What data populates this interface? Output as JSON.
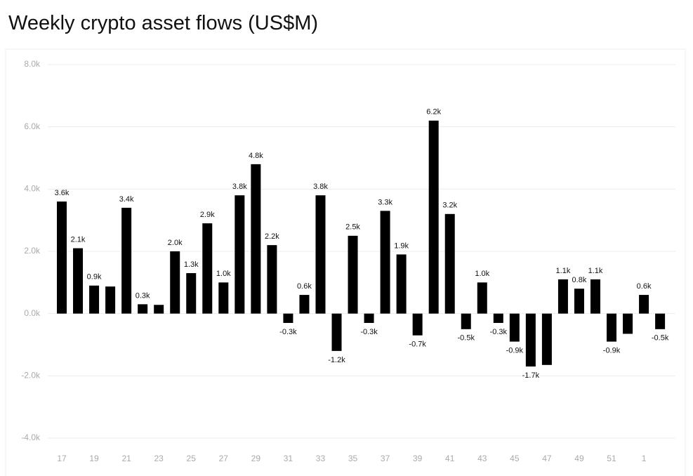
{
  "chart_data": {
    "type": "bar",
    "title": "Weekly crypto asset flows (US$M)",
    "categories": [
      "17",
      null,
      "19",
      null,
      "21",
      null,
      "23",
      null,
      "25",
      null,
      "27",
      null,
      "29",
      null,
      "31",
      null,
      "33",
      null,
      "35",
      null,
      "37",
      null,
      "39",
      null,
      "41",
      null,
      "43",
      null,
      "45",
      null,
      "47",
      null,
      "49",
      null,
      "51",
      null,
      "1",
      null
    ],
    "values": [
      3600,
      2100,
      900,
      870,
      3400,
      300,
      280,
      2000,
      1300,
      2900,
      1000,
      3800,
      4800,
      2200,
      -300,
      600,
      3800,
      -1200,
      2500,
      -300,
      3300,
      1900,
      -700,
      6200,
      3200,
      -500,
      1000,
      -300,
      -900,
      -1700,
      -1650,
      1100,
      800,
      1100,
      -900,
      -650,
      600,
      -500
    ],
    "value_labels": [
      "3.6k",
      "2.1k",
      "0.9k",
      null,
      "3.4k",
      "0.3k",
      null,
      "2.0k",
      "1.3k",
      "2.9k",
      "1.0k",
      "3.8k",
      "4.8k",
      "2.2k",
      "-0.3k",
      "0.6k",
      "3.8k",
      "-1.2k",
      "2.5k",
      "-0.3k",
      "3.3k",
      "1.9k",
      "-0.7k",
      "6.2k",
      "3.2k",
      "-0.5k",
      "1.0k",
      "-0.3k",
      "-0.9k",
      "-1.7k",
      null,
      "1.1k",
      "0.8k",
      "1.1k",
      "-0.9k",
      null,
      "0.6k",
      "-0.5k"
    ],
    "color": "#000000",
    "ylim": [
      -4000,
      8000
    ],
    "yticks": [
      {
        "value": -4000,
        "label": "-4.0k"
      },
      {
        "value": -2000,
        "label": "-2.0k"
      },
      {
        "value": 0,
        "label": "0.0k"
      },
      {
        "value": 2000,
        "label": "2.0k"
      },
      {
        "value": 4000,
        "label": "4.0k"
      },
      {
        "value": 6000,
        "label": "6.0k"
      },
      {
        "value": 8000,
        "label": "8.0k"
      }
    ],
    "grid": true
  }
}
